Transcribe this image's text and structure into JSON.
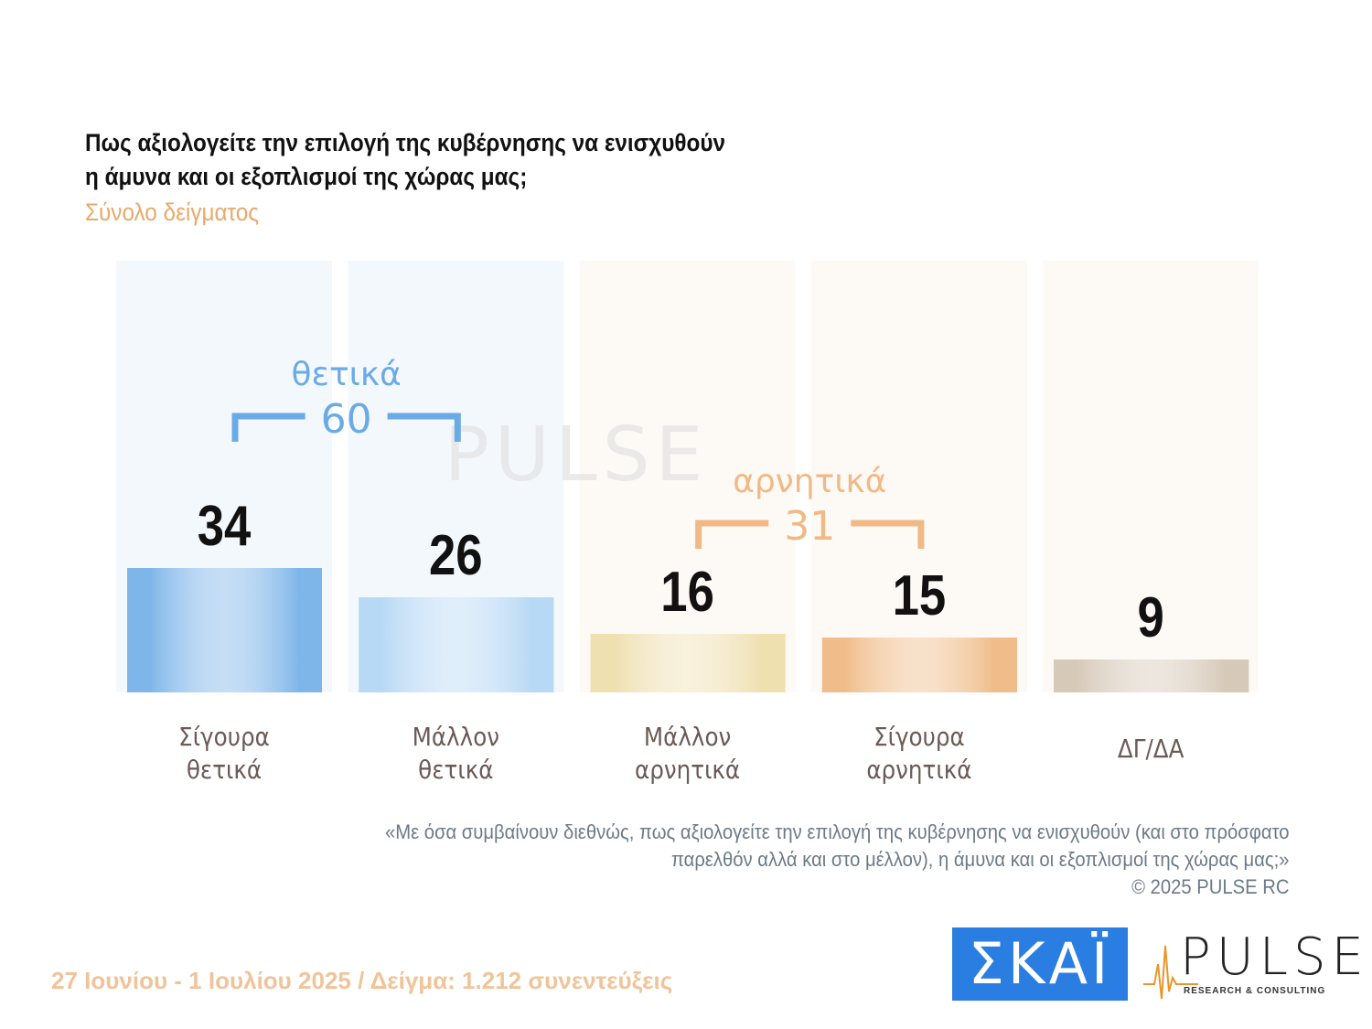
{
  "chart_data": {
    "type": "bar",
    "title": "Πως αξιολογείτε την επιλογή της κυβέρνησης να ενισχυθούν η άμυνα και οι εξοπλισμοί της χώρας μας;",
    "title_lines": [
      "Πως αξιολογείτε την επιλογή της κυβέρνησης να ενισχυθούν",
      "η άμυνα και οι εξοπλισμοί της χώρας μας;"
    ],
    "subtitle": "Σύνολο δείγματος",
    "categories": [
      [
        "Σίγουρα",
        "θετικά"
      ],
      [
        "Μάλλον",
        "θετικά"
      ],
      [
        "Μάλλον",
        "αρνητικά"
      ],
      [
        "Σίγουρα",
        "αρνητικά"
      ],
      [
        "ΔΓ/ΔΑ"
      ]
    ],
    "values": [
      34,
      26,
      16,
      15,
      9
    ],
    "colors": [
      "#7fb6ea",
      "#b8d9f5",
      "#efe0b0",
      "#f0bd8a",
      "#d6c9b8"
    ],
    "groups": [
      {
        "label": "θετικά",
        "total": "60",
        "from": 0,
        "to": 1,
        "color": "#6aaae6"
      },
      {
        "label": "αρνητικά",
        "total": "31",
        "from": 2,
        "to": 3,
        "color": "#f0b985"
      }
    ],
    "ylim": [
      0,
      100
    ],
    "grid": false,
    "legend": "none"
  },
  "note_lines": [
    "«Με όσα συμβαίνουν διεθνώς, πως αξιολογείτε την επιλογή της κυβέρνησης να ενισχυθούν (και στο πρόσφατο",
    "παρελθόν αλλά και στο μέλλον), η άμυνα και οι εξοπλισμοί της χώρας μας;»",
    "©  2025  PULSE RC"
  ],
  "footer": "27 Ιουνίου - 1 Ιουλίου 2025  /  Δείγμα:  1.212 συνεντεύξεις",
  "logos": {
    "skai": "ΣΚΑΪ",
    "pulse": "PULSE",
    "pulse_sub": "RESEARCH & CONSULTING"
  },
  "watermark": "PULSE"
}
